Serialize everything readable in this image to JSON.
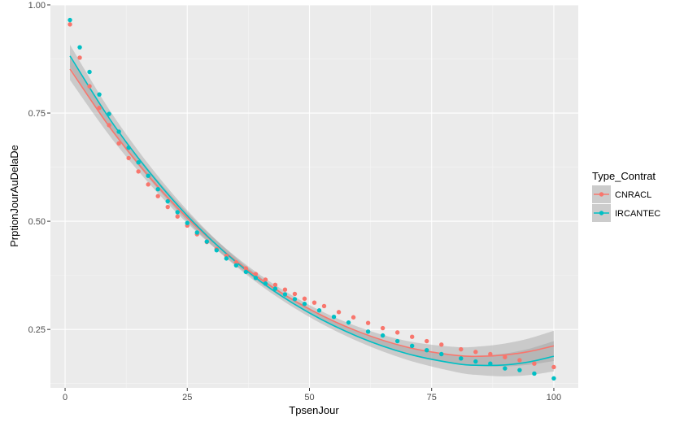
{
  "chart_data": {
    "type": "scatter",
    "xlabel": "TpsenJour",
    "ylabel": "PrptionJourAuDelaDe",
    "xlim": [
      -3,
      105
    ],
    "ylim": [
      0.115,
      1.0
    ],
    "x_ticks": [
      0,
      25,
      50,
      75,
      100
    ],
    "y_ticks": [
      0.25,
      0.5,
      0.75,
      1.0
    ],
    "x_tick_labels": [
      "0",
      "25",
      "50",
      "75",
      "100"
    ],
    "y_tick_labels": [
      "0.25",
      "0.50",
      "0.75",
      "1.00"
    ],
    "grid": true,
    "legend": {
      "title": "Type_Contrat",
      "placement": "right"
    },
    "series": [
      {
        "name": "CNRACL",
        "color": "#F8766D",
        "points": [
          [
            1,
            0.955
          ],
          [
            3,
            0.878
          ],
          [
            5,
            0.812
          ],
          [
            7,
            0.762
          ],
          [
            9,
            0.722
          ],
          [
            11,
            0.68
          ],
          [
            13,
            0.646
          ],
          [
            15,
            0.615
          ],
          [
            17,
            0.585
          ],
          [
            19,
            0.558
          ],
          [
            21,
            0.533
          ],
          [
            23,
            0.511
          ],
          [
            25,
            0.49
          ],
          [
            27,
            0.47
          ],
          [
            29,
            0.452
          ],
          [
            31,
            0.436
          ],
          [
            33,
            0.42
          ],
          [
            35,
            0.405
          ],
          [
            37,
            0.391
          ],
          [
            39,
            0.378
          ],
          [
            41,
            0.365
          ],
          [
            43,
            0.353
          ],
          [
            45,
            0.342
          ],
          [
            47,
            0.332
          ],
          [
            49,
            0.321
          ],
          [
            51,
            0.312
          ],
          [
            53,
            0.304
          ],
          [
            56,
            0.29
          ],
          [
            59,
            0.278
          ],
          [
            62,
            0.265
          ],
          [
            65,
            0.253
          ],
          [
            68,
            0.243
          ],
          [
            71,
            0.233
          ],
          [
            74,
            0.223
          ],
          [
            77,
            0.215
          ],
          [
            81,
            0.204
          ],
          [
            84,
            0.198
          ],
          [
            87,
            0.193
          ],
          [
            90,
            0.186
          ],
          [
            93,
            0.179
          ],
          [
            96,
            0.171
          ],
          [
            100,
            0.163
          ]
        ],
        "fit": [
          [
            1,
            0.852
          ],
          [
            10,
            0.704
          ],
          [
            20,
            0.567
          ],
          [
            30,
            0.455
          ],
          [
            40,
            0.366
          ],
          [
            50,
            0.297
          ],
          [
            60,
            0.245
          ],
          [
            70,
            0.209
          ],
          [
            80,
            0.19
          ],
          [
            85,
            0.188
          ],
          [
            90,
            0.191
          ],
          [
            95,
            0.199
          ],
          [
            100,
            0.212
          ]
        ]
      },
      {
        "name": "IRCANTEC",
        "color": "#00BFC4",
        "points": [
          [
            1,
            0.965
          ],
          [
            3,
            0.902
          ],
          [
            5,
            0.845
          ],
          [
            7,
            0.793
          ],
          [
            9,
            0.748
          ],
          [
            11,
            0.707
          ],
          [
            13,
            0.67
          ],
          [
            15,
            0.636
          ],
          [
            17,
            0.605
          ],
          [
            19,
            0.574
          ],
          [
            21,
            0.546
          ],
          [
            23,
            0.521
          ],
          [
            25,
            0.496
          ],
          [
            27,
            0.474
          ],
          [
            29,
            0.453
          ],
          [
            31,
            0.433
          ],
          [
            33,
            0.414
          ],
          [
            35,
            0.398
          ],
          [
            37,
            0.383
          ],
          [
            39,
            0.369
          ],
          [
            41,
            0.356
          ],
          [
            43,
            0.344
          ],
          [
            45,
            0.331
          ],
          [
            47,
            0.32
          ],
          [
            49,
            0.309
          ],
          [
            52,
            0.294
          ],
          [
            55,
            0.279
          ],
          [
            58,
            0.266
          ],
          [
            62,
            0.245
          ],
          [
            65,
            0.236
          ],
          [
            68,
            0.223
          ],
          [
            71,
            0.212
          ],
          [
            74,
            0.202
          ],
          [
            77,
            0.193
          ],
          [
            81,
            0.183
          ],
          [
            84,
            0.176
          ],
          [
            87,
            0.171
          ],
          [
            90,
            0.16
          ],
          [
            93,
            0.156
          ],
          [
            96,
            0.148
          ],
          [
            100,
            0.137
          ]
        ],
        "fit": [
          [
            1,
            0.882
          ],
          [
            10,
            0.722
          ],
          [
            20,
            0.576
          ],
          [
            30,
            0.456
          ],
          [
            40,
            0.361
          ],
          [
            50,
            0.288
          ],
          [
            60,
            0.233
          ],
          [
            70,
            0.194
          ],
          [
            80,
            0.171
          ],
          [
            85,
            0.167
          ],
          [
            90,
            0.168
          ],
          [
            95,
            0.175
          ],
          [
            100,
            0.188
          ]
        ]
      }
    ]
  }
}
